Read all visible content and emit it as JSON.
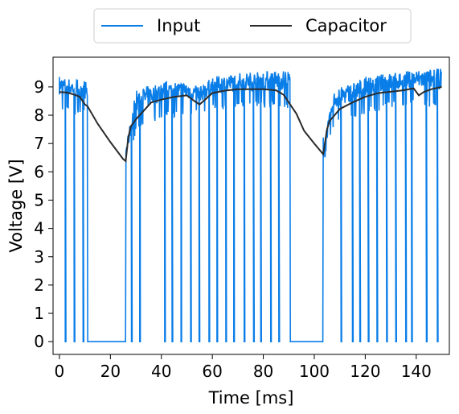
{
  "chart_data": {
    "type": "line",
    "title": "",
    "xlabel": "Time [ms]",
    "ylabel": "Voltage [V]",
    "xlim": [
      -2.5,
      153
    ],
    "ylim": [
      -0.45,
      10.05
    ],
    "xticks": [
      0,
      20,
      40,
      60,
      80,
      100,
      120,
      140
    ],
    "yticks": [
      0,
      1,
      2,
      3,
      4,
      5,
      6,
      7,
      8,
      9
    ],
    "grid": false,
    "legend": {
      "placement": "top-center-outside",
      "ncol": 2
    },
    "series": [
      {
        "name": "Input",
        "color": "#0a7ee8",
        "envelope_upper": [
          [
            0,
            9.35
          ],
          [
            10,
            9.25
          ],
          [
            26,
            6.8
          ],
          [
            30,
            8.9
          ],
          [
            40,
            9.2
          ],
          [
            50,
            9.2
          ],
          [
            55,
            9.0
          ],
          [
            60,
            9.35
          ],
          [
            70,
            9.5
          ],
          [
            80,
            9.55
          ],
          [
            90,
            9.6
          ],
          [
            104,
            7.2
          ],
          [
            108,
            8.9
          ],
          [
            120,
            9.35
          ],
          [
            130,
            9.5
          ],
          [
            140,
            9.6
          ],
          [
            150,
            9.65
          ]
        ],
        "envelope_lower": [
          [
            0,
            8.4
          ],
          [
            10,
            8.2
          ],
          [
            26,
            6.3
          ],
          [
            30,
            7.6
          ],
          [
            40,
            8.1
          ],
          [
            50,
            8.2
          ],
          [
            55,
            8.2
          ],
          [
            60,
            8.4
          ],
          [
            70,
            8.5
          ],
          [
            80,
            8.5
          ],
          [
            90,
            8.5
          ],
          [
            104,
            6.6
          ],
          [
            108,
            7.9
          ],
          [
            120,
            8.3
          ],
          [
            130,
            8.5
          ],
          [
            140,
            8.6
          ],
          [
            150,
            8.5
          ]
        ],
        "zero_intervals": [
          [
            11,
            26
          ],
          [
            90.5,
            103.5
          ]
        ],
        "dropouts": [
          2.3,
          5.8,
          9.3,
          28.3,
          31.5,
          41.3,
          44.2,
          47.7,
          51.5,
          54.8,
          58.7,
          61.8,
          65.3,
          68.4,
          72.5,
          76.2,
          79.0,
          82.9,
          86.1,
          110.5,
          115.0,
          117.9,
          121.2,
          124.6,
          128.4,
          132.0,
          135.9,
          138.2,
          144.0,
          148.3
        ]
      },
      {
        "name": "Capacitor",
        "color": "#2b2b2b",
        "x": [
          0,
          3,
          6,
          8,
          10,
          11,
          15,
          20,
          25,
          26,
          27,
          28,
          30,
          33,
          36,
          40,
          45,
          50,
          53,
          55,
          60,
          65,
          70,
          75,
          80,
          85,
          88,
          90,
          93,
          96,
          100,
          103.5,
          105,
          106,
          108,
          110,
          115,
          120,
          125,
          130,
          135,
          139,
          141,
          143,
          146,
          150
        ],
        "y": [
          8.82,
          8.8,
          8.72,
          8.65,
          8.38,
          8.32,
          7.7,
          7.05,
          6.45,
          6.38,
          7.2,
          7.6,
          7.85,
          8.15,
          8.45,
          8.55,
          8.65,
          8.7,
          8.5,
          8.38,
          8.78,
          8.87,
          8.92,
          8.92,
          8.92,
          8.88,
          8.72,
          8.45,
          8.05,
          7.45,
          7.0,
          6.62,
          7.5,
          7.8,
          8.0,
          8.22,
          8.45,
          8.65,
          8.78,
          8.83,
          8.88,
          8.95,
          8.7,
          8.82,
          8.92,
          9.0
        ]
      }
    ]
  }
}
